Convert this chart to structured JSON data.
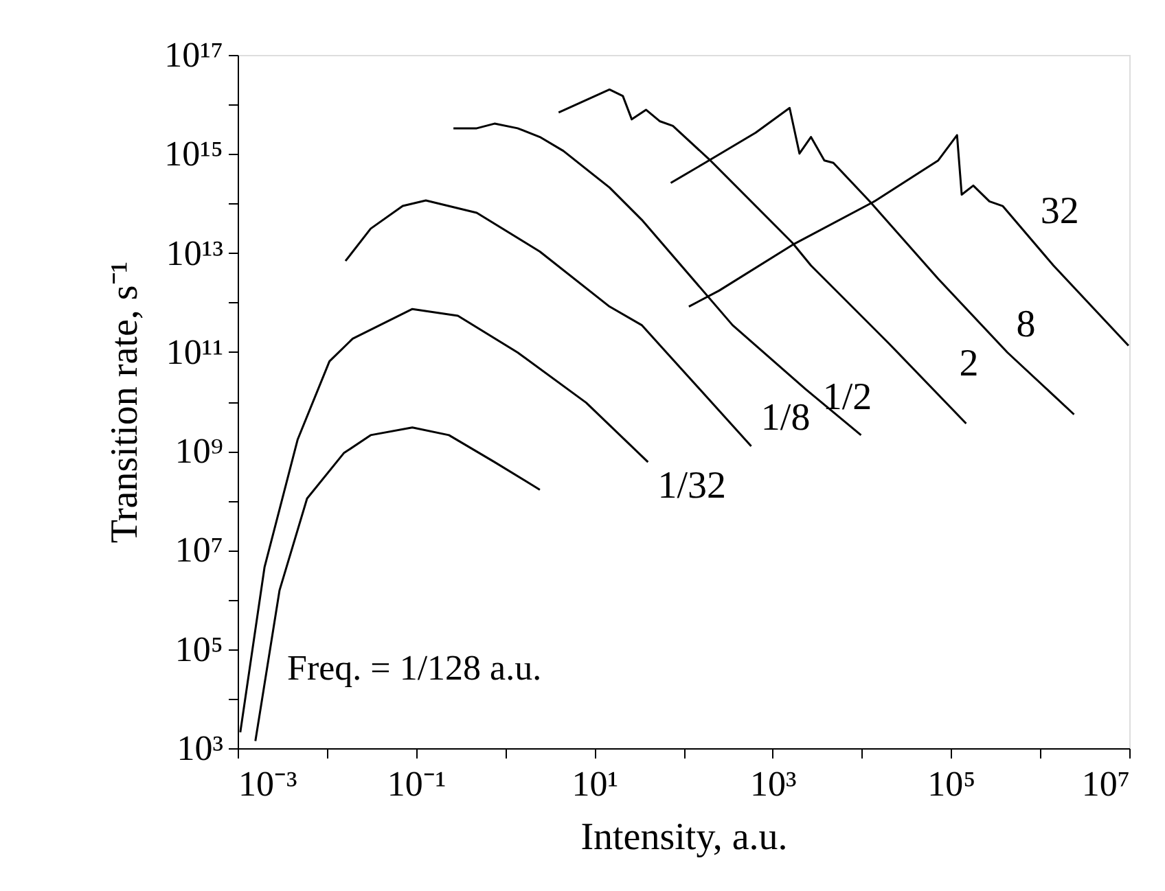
{
  "chart_data": {
    "type": "line",
    "xlabel": "Intensity, a.u.",
    "ylabel": "Transition rate, s⁻¹",
    "log": "xy",
    "grid": false,
    "legend": false,
    "marker": "none",
    "line_style": "solid",
    "xlim": [
      0.001,
      10000000
    ],
    "ylim": [
      1000,
      1e+17
    ],
    "xticks": [
      {
        "value": 0.001,
        "label": "10⁻³"
      },
      {
        "value": 0.01,
        "label": null
      },
      {
        "value": 0.1,
        "label": "10⁻¹"
      },
      {
        "value": 1,
        "label": null
      },
      {
        "value": 10,
        "label": "10¹"
      },
      {
        "value": 100,
        "label": null
      },
      {
        "value": 1000,
        "label": "10³"
      },
      {
        "value": 10000,
        "label": null
      },
      {
        "value": 100000,
        "label": "10⁵"
      },
      {
        "value": 1000000,
        "label": null
      },
      {
        "value": 10000000,
        "label": "10⁷"
      }
    ],
    "yticks": [
      {
        "value": 1000,
        "label": "10³"
      },
      {
        "value": 10000,
        "label": null
      },
      {
        "value": 100000,
        "label": "10⁵"
      },
      {
        "value": 1000000,
        "label": null
      },
      {
        "value": 10000000,
        "label": "10⁷"
      },
      {
        "value": 100000000,
        "label": null
      },
      {
        "value": 1000000000,
        "label": "10⁹"
      },
      {
        "value": 10000000000.0,
        "label": null
      },
      {
        "value": 100000000000.0,
        "label": "10¹¹"
      },
      {
        "value": 1000000000000.0,
        "label": null
      },
      {
        "value": 10000000000000.0,
        "label": "10¹³"
      },
      {
        "value": 100000000000000.0,
        "label": null
      },
      {
        "value": 1000000000000000.0,
        "label": "10¹⁵"
      },
      {
        "value": 1e+16,
        "label": null
      },
      {
        "value": 1e+17,
        "label": "10¹⁷"
      }
    ],
    "annotations": [
      "Freq. = 1/128 a.u."
    ],
    "series": [
      {
        "color": "#000000",
        "x": [
          0.00158,
          0.00295,
          0.006,
          0.0155,
          0.031,
          0.091,
          0.234,
          0.76,
          2.45
        ],
        "values": [
          1400.0,
          1550000.0,
          110000000.0,
          910000000.0,
          2100000000.0,
          3000000000.0,
          2100000000.0,
          600000000.0,
          166000000.0
        ]
      },
      {
        "name": "1/32",
        "color": "#000000",
        "x": [
          0.00107,
          0.002,
          0.0047,
          0.0107,
          0.0195,
          0.091,
          0.295,
          1.38,
          8.1,
          40
        ],
        "values": [
          2100.0,
          4500000.0,
          1700000000.0,
          65000000000.0,
          186000000000.0,
          740000000000.0,
          540000000000.0,
          98000000000.0,
          9500000000.0,
          600000000.0
        ]
      },
      {
        "name": "1/8",
        "color": "#000000",
        "x": [
          0.0162,
          0.031,
          0.071,
          0.129,
          0.48,
          2.45,
          14.8,
          34,
          575
        ],
        "values": [
          6900000000000.0,
          31000000000000.0,
          89000000000000.0,
          115000000000000.0,
          65000000000000.0,
          10700000000000.0,
          830000000000.0,
          350000000000.0,
          1260000000.0
        ]
      },
      {
        "name": "1/2",
        "color": "#000000",
        "x": [
          0.263,
          0.48,
          0.76,
          1.38,
          2.45,
          4.5,
          14.8,
          34,
          355,
          2340,
          9800
        ],
        "values": [
          3300000000000000.0,
          3300000000000000.0,
          4100000000000000.0,
          3300000000000000.0,
          2200000000000000.0,
          1150000000000000.0,
          210000000000000.0,
          47000000000000.0,
          350000000000.0,
          17800000000.0,
          2100000000.0
        ]
      },
      {
        "name": "2",
        "color": "#000000",
        "x": [
          3.98,
          14.8,
          20.9,
          26.3,
          38,
          54,
          76,
          200,
          1660,
          2690,
          20000.0,
          148000.0
        ],
        "values": [
          6900000000000000.0,
          2e+16,
          1.48e+16,
          5000000000000000.0,
          7800000000000000.0,
          4600000000000000.0,
          3700000000000000.0,
          740000000000000.0,
          16200000000000.0,
          5600000000000.0,
          151000000000.0,
          3600000000.0
        ]
      },
      {
        "name": "8",
        "color": "#000000",
        "x": [
          72,
          174,
          646,
          1550,
          2000,
          2690,
          3800,
          4800,
          12300.0,
          72000.0,
          430000.0,
          2400000.0
        ],
        "values": [
          260000000000000.0,
          660000000000000.0,
          2700000000000000.0,
          8500000000000000.0,
          1020000000000000.0,
          2200000000000000.0,
          740000000000000.0,
          660000000000000.0,
          110000000000000.0,
          3000000000000.0,
          98000000000.0,
          5500000000.0
        ]
      },
      {
        "name": "32",
        "color": "#000000",
        "x": [
          115,
          251,
          1660,
          13800.0,
          72000.0,
          117000.0,
          132000.0,
          178000.0,
          270000.0,
          380000.0,
          1410000.0,
          9800000.0
        ],
        "values": [
          830000000000.0,
          1740000000000.0,
          14500000000000.0,
          110000000000000.0,
          740000000000000.0,
          2400000000000000.0,
          151000000000000.0,
          230000000000000.0,
          110000000000000.0,
          89000000000000.0,
          5600000000000.0,
          135000000000.0
        ]
      }
    ]
  }
}
